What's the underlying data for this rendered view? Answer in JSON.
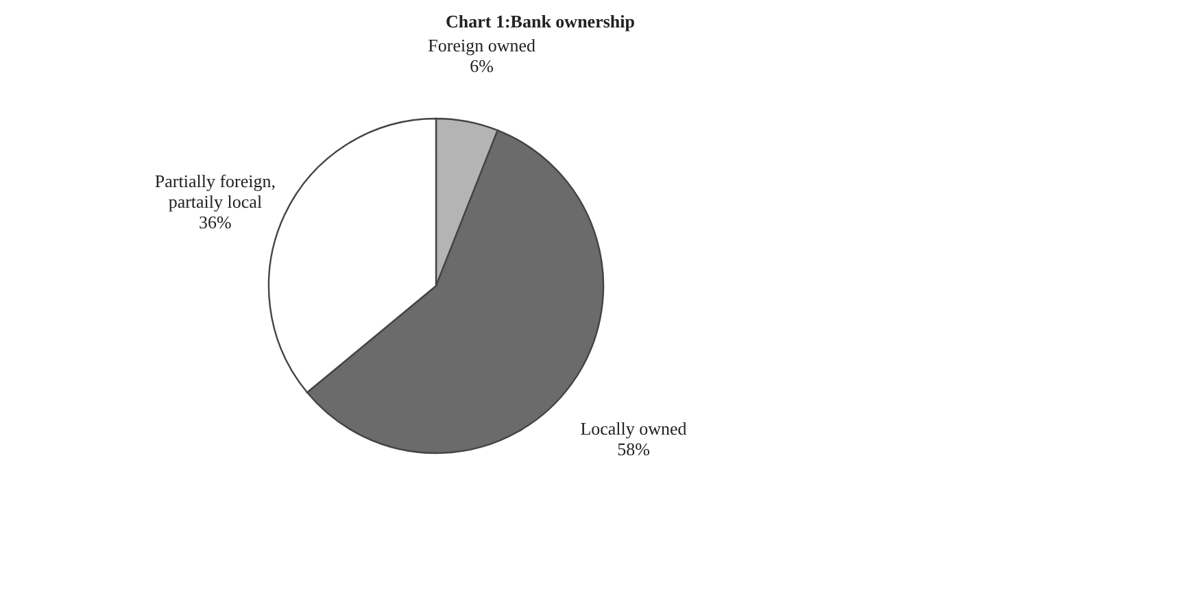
{
  "chart_data": {
    "type": "pie",
    "title": "Chart 1:Bank ownership",
    "categories": [
      "Foreign owned",
      "Locally owned",
      "Partially foreign, partaily local"
    ],
    "values": [
      6,
      58,
      36
    ],
    "value_labels": [
      "6%",
      "58%",
      "36%"
    ],
    "colors": [
      "#b4b4b4",
      "#6b6b6b",
      "#ffffff"
    ],
    "legend": false
  }
}
